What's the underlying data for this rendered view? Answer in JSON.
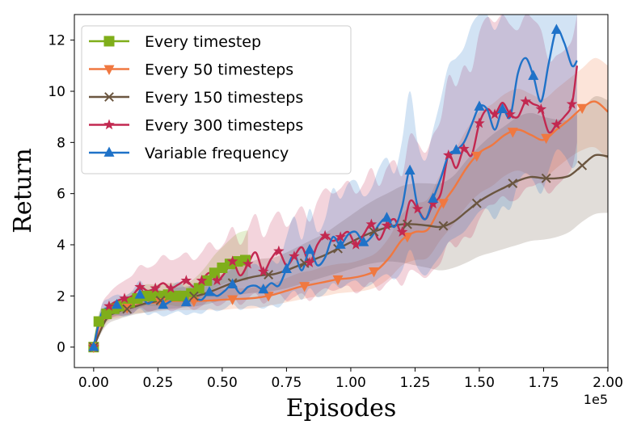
{
  "chart_data": {
    "type": "line",
    "title": "",
    "xlabel": "Episodes",
    "ylabel": "Return",
    "x_offset_label": "1e5",
    "xlim": [
      -0.075,
      2.0
    ],
    "ylim": [
      -0.8,
      13.0
    ],
    "xticks": [
      0.0,
      0.25,
      0.5,
      0.75,
      1.0,
      1.25,
      1.5,
      1.75,
      2.0
    ],
    "xtick_labels": [
      "0.00",
      "0.25",
      "0.50",
      "0.75",
      "1.00",
      "1.25",
      "1.50",
      "1.75",
      "2.00"
    ],
    "yticks": [
      0,
      2,
      4,
      6,
      8,
      10,
      12
    ],
    "ytick_labels": [
      "0",
      "2",
      "4",
      "6",
      "8",
      "10",
      "12"
    ],
    "grid": false,
    "legend_position": "top-left",
    "series": [
      {
        "name": "Every timestep",
        "color": "#7fae1a",
        "marker": "square",
        "x": [
          0,
          0.02,
          0.05,
          0.08,
          0.11,
          0.14,
          0.17,
          0.2,
          0.23,
          0.26,
          0.29,
          0.32,
          0.35,
          0.38,
          0.41,
          0.44,
          0.47,
          0.5,
          0.53,
          0.56,
          0.59,
          0.6
        ],
        "y": [
          0,
          1.0,
          1.3,
          1.5,
          1.6,
          1.75,
          1.9,
          2.0,
          2.0,
          2.0,
          2.05,
          2.0,
          2.0,
          2.1,
          2.3,
          2.6,
          2.9,
          3.1,
          3.25,
          3.35,
          3.4,
          3.4
        ],
        "lower": [
          0,
          0.7,
          1.0,
          1.2,
          1.3,
          1.4,
          1.5,
          1.6,
          1.6,
          1.6,
          1.65,
          1.6,
          1.6,
          1.7,
          1.85,
          2.1,
          2.3,
          2.45,
          2.55,
          2.6,
          2.6,
          2.6
        ],
        "upper": [
          0,
          1.3,
          1.6,
          1.8,
          1.95,
          2.1,
          2.3,
          2.45,
          2.45,
          2.45,
          2.5,
          2.5,
          2.5,
          2.6,
          2.85,
          3.2,
          3.6,
          3.9,
          4.2,
          4.45,
          4.55,
          4.55
        ],
        "marker_x": [
          0,
          0.02,
          0.05,
          0.08,
          0.11,
          0.14,
          0.17,
          0.2,
          0.23,
          0.26,
          0.29,
          0.32,
          0.35,
          0.38,
          0.41,
          0.44,
          0.47,
          0.5,
          0.53,
          0.56,
          0.59
        ]
      },
      {
        "name": "Every 50 timesteps",
        "color": "#f07840",
        "marker": "triangle-down",
        "x": [
          0,
          0.05,
          0.1,
          0.15,
          0.2,
          0.25,
          0.3,
          0.35,
          0.4,
          0.45,
          0.5,
          0.55,
          0.6,
          0.65,
          0.7,
          0.75,
          0.8,
          0.85,
          0.9,
          0.95,
          1.0,
          1.05,
          1.1,
          1.15,
          1.2,
          1.25,
          1.3,
          1.35,
          1.4,
          1.45,
          1.5,
          1.55,
          1.6,
          1.65,
          1.7,
          1.75,
          1.8,
          1.85,
          1.9,
          1.95,
          2.0
        ],
        "y": [
          0,
          1.2,
          1.45,
          1.6,
          1.7,
          1.75,
          1.8,
          1.8,
          1.8,
          1.82,
          1.85,
          1.88,
          1.9,
          1.95,
          2.05,
          2.2,
          2.35,
          2.45,
          2.55,
          2.65,
          2.7,
          2.8,
          3.0,
          3.5,
          4.2,
          4.5,
          4.6,
          5.5,
          6.2,
          7.0,
          7.6,
          7.9,
          8.3,
          8.5,
          8.3,
          8.1,
          8.5,
          8.9,
          9.35,
          9.6,
          9.2
        ],
        "lower": [
          0,
          0.95,
          1.15,
          1.3,
          1.35,
          1.4,
          1.45,
          1.45,
          1.45,
          1.45,
          1.45,
          1.5,
          1.5,
          1.55,
          1.65,
          1.75,
          1.85,
          1.95,
          2.0,
          2.1,
          2.15,
          2.2,
          2.35,
          2.7,
          3.2,
          3.4,
          3.5,
          4.2,
          4.8,
          5.5,
          6.0,
          6.3,
          6.7,
          6.9,
          6.7,
          6.6,
          7.0,
          7.4,
          7.7,
          7.8,
          7.3
        ],
        "upper": [
          0,
          1.45,
          1.75,
          1.9,
          2.05,
          2.1,
          2.15,
          2.15,
          2.15,
          2.2,
          2.25,
          2.3,
          2.3,
          2.4,
          2.5,
          2.7,
          2.9,
          3.0,
          3.15,
          3.25,
          3.3,
          3.45,
          3.7,
          4.3,
          5.2,
          5.6,
          5.8,
          6.8,
          7.6,
          8.5,
          9.2,
          9.5,
          9.9,
          10.1,
          9.9,
          9.7,
          10.1,
          10.5,
          10.9,
          11.3,
          11.0
        ],
        "marker_x": [
          0.0,
          0.13,
          0.26,
          0.39,
          0.54,
          0.68,
          0.82,
          0.95,
          1.09,
          1.22,
          1.36,
          1.49,
          1.63,
          1.76,
          1.9
        ]
      },
      {
        "name": "Every 150 timesteps",
        "color": "#6b5640",
        "marker": "x",
        "x": [
          0,
          0.05,
          0.1,
          0.15,
          0.2,
          0.25,
          0.3,
          0.35,
          0.4,
          0.45,
          0.5,
          0.55,
          0.6,
          0.65,
          0.7,
          0.75,
          0.8,
          0.85,
          0.9,
          0.95,
          1.0,
          1.05,
          1.1,
          1.15,
          1.2,
          1.25,
          1.3,
          1.35,
          1.4,
          1.45,
          1.5,
          1.55,
          1.6,
          1.65,
          1.7,
          1.75,
          1.8,
          1.85,
          1.9,
          1.95,
          2.0
        ],
        "y": [
          0,
          1.1,
          1.4,
          1.55,
          1.7,
          1.8,
          1.9,
          1.95,
          2.0,
          2.15,
          2.35,
          2.55,
          2.7,
          2.8,
          2.85,
          3.0,
          3.2,
          3.4,
          3.6,
          3.85,
          4.1,
          4.35,
          4.55,
          4.7,
          4.8,
          4.8,
          4.75,
          4.7,
          4.9,
          5.3,
          5.7,
          6.0,
          6.25,
          6.5,
          6.65,
          6.6,
          6.6,
          6.7,
          7.1,
          7.5,
          7.45
        ],
        "lower": [
          0,
          0.85,
          1.1,
          1.25,
          1.35,
          1.45,
          1.5,
          1.55,
          1.6,
          1.7,
          1.85,
          2.0,
          2.1,
          2.15,
          2.2,
          2.3,
          2.45,
          2.6,
          2.75,
          2.9,
          3.05,
          3.2,
          3.3,
          3.35,
          3.3,
          3.2,
          3.1,
          3.0,
          3.1,
          3.3,
          3.55,
          3.7,
          3.85,
          4.0,
          4.15,
          4.2,
          4.3,
          4.5,
          4.9,
          5.2,
          5.25
        ],
        "upper": [
          0,
          1.35,
          1.7,
          1.85,
          2.05,
          2.15,
          2.3,
          2.35,
          2.45,
          2.6,
          2.85,
          3.1,
          3.3,
          3.45,
          3.5,
          3.7,
          3.95,
          4.2,
          4.45,
          4.8,
          5.15,
          5.5,
          5.8,
          6.05,
          6.3,
          6.4,
          6.4,
          6.4,
          6.7,
          7.3,
          7.85,
          8.3,
          8.65,
          9.0,
          9.15,
          9.0,
          8.9,
          8.9,
          9.3,
          9.8,
          9.65
        ],
        "marker_x": [
          0.0,
          0.13,
          0.26,
          0.39,
          0.54,
          0.68,
          0.82,
          0.95,
          1.09,
          1.22,
          1.36,
          1.49,
          1.63,
          1.76,
          1.9
        ]
      },
      {
        "name": "Every 300 timesteps",
        "color": "#c22850",
        "marker": "star",
        "x": [
          0,
          0.03,
          0.06,
          0.09,
          0.12,
          0.15,
          0.18,
          0.21,
          0.24,
          0.27,
          0.3,
          0.33,
          0.36,
          0.39,
          0.42,
          0.45,
          0.48,
          0.51,
          0.54,
          0.57,
          0.6,
          0.63,
          0.66,
          0.69,
          0.72,
          0.75,
          0.78,
          0.81,
          0.84,
          0.87,
          0.9,
          0.93,
          0.96,
          0.99,
          1.02,
          1.05,
          1.08,
          1.11,
          1.14,
          1.17,
          1.2,
          1.23,
          1.26,
          1.29,
          1.32,
          1.35,
          1.38,
          1.41,
          1.44,
          1.47,
          1.5,
          1.53,
          1.56,
          1.59,
          1.62,
          1.65,
          1.68,
          1.71,
          1.74,
          1.77,
          1.8,
          1.83,
          1.86,
          1.88
        ],
        "y": [
          0,
          1.2,
          1.6,
          1.8,
          1.9,
          2.0,
          2.35,
          2.2,
          2.3,
          2.5,
          2.3,
          2.45,
          2.6,
          2.35,
          2.6,
          2.9,
          2.6,
          2.9,
          3.35,
          2.8,
          3.25,
          3.7,
          2.95,
          3.45,
          3.75,
          3.2,
          3.55,
          3.9,
          3.3,
          4.0,
          4.35,
          4.15,
          4.3,
          4.5,
          4.0,
          4.4,
          4.8,
          4.2,
          4.75,
          5.0,
          4.5,
          5.7,
          5.4,
          5.0,
          5.6,
          6.0,
          7.5,
          7.0,
          7.75,
          7.5,
          8.75,
          9.3,
          9.1,
          9.55,
          9.1,
          9.0,
          9.6,
          9.5,
          9.3,
          8.4,
          8.7,
          9.0,
          9.5,
          11.0
        ],
        "lower": [
          0,
          0.8,
          1.1,
          1.2,
          1.25,
          1.3,
          1.55,
          1.4,
          1.45,
          1.6,
          1.4,
          1.5,
          1.6,
          1.45,
          1.6,
          1.8,
          1.6,
          1.75,
          2.0,
          1.65,
          1.9,
          2.1,
          1.7,
          1.95,
          2.1,
          1.8,
          1.95,
          2.1,
          1.8,
          2.1,
          2.3,
          2.2,
          2.3,
          2.4,
          2.1,
          2.3,
          2.55,
          2.2,
          2.5,
          2.7,
          2.4,
          3.0,
          2.9,
          2.7,
          3.0,
          3.3,
          4.1,
          3.9,
          4.3,
          4.3,
          5.0,
          5.5,
          5.6,
          5.9,
          5.7,
          5.8,
          6.2,
          6.3,
          6.4,
          6.0,
          6.3,
          6.6,
          7.0,
          8.0
        ],
        "upper": [
          0,
          1.6,
          2.1,
          2.4,
          2.6,
          2.8,
          3.2,
          3.1,
          3.25,
          3.6,
          3.4,
          3.5,
          3.7,
          3.4,
          3.7,
          4.1,
          3.8,
          4.1,
          4.7,
          4.0,
          4.6,
          5.2,
          4.3,
          4.9,
          5.3,
          4.7,
          5.1,
          5.5,
          4.9,
          5.7,
          6.2,
          6.0,
          6.2,
          6.5,
          6.0,
          6.4,
          7.0,
          6.3,
          7.0,
          7.3,
          6.7,
          8.3,
          8.0,
          7.6,
          8.3,
          8.9,
          10.6,
          10.2,
          11.0,
          10.8,
          12.3,
          12.9,
          12.7,
          13.0,
          12.6,
          12.4,
          13.0,
          12.8,
          12.4,
          11.2,
          11.4,
          11.6,
          12.0,
          13.0
        ],
        "marker_x": [
          0,
          0.06,
          0.12,
          0.18,
          0.24,
          0.3,
          0.36,
          0.42,
          0.48,
          0.54,
          0.6,
          0.66,
          0.72,
          0.78,
          0.84,
          0.9,
          0.96,
          1.02,
          1.08,
          1.14,
          1.2,
          1.26,
          1.32,
          1.38,
          1.44,
          1.5,
          1.56,
          1.62,
          1.68,
          1.74,
          1.8,
          1.86
        ]
      },
      {
        "name": "Variable frequency",
        "color": "#1f72c8",
        "marker": "triangle-up",
        "x": [
          0,
          0.03,
          0.06,
          0.09,
          0.12,
          0.15,
          0.18,
          0.21,
          0.24,
          0.27,
          0.3,
          0.33,
          0.36,
          0.39,
          0.42,
          0.45,
          0.48,
          0.51,
          0.54,
          0.57,
          0.6,
          0.63,
          0.66,
          0.69,
          0.72,
          0.75,
          0.78,
          0.81,
          0.84,
          0.87,
          0.9,
          0.93,
          0.96,
          0.99,
          1.02,
          1.05,
          1.08,
          1.11,
          1.14,
          1.17,
          1.2,
          1.23,
          1.26,
          1.29,
          1.32,
          1.35,
          1.38,
          1.41,
          1.44,
          1.47,
          1.5,
          1.53,
          1.56,
          1.59,
          1.62,
          1.65,
          1.68,
          1.71,
          1.74,
          1.77,
          1.8,
          1.83,
          1.86,
          1.88
        ],
        "y": [
          0,
          1.3,
          1.55,
          1.65,
          1.6,
          1.75,
          2.05,
          1.7,
          1.85,
          1.65,
          1.8,
          1.95,
          1.75,
          1.9,
          1.85,
          2.15,
          2.0,
          2.2,
          2.45,
          2.1,
          2.35,
          2.4,
          2.25,
          2.5,
          2.4,
          3.05,
          3.6,
          3.0,
          3.8,
          3.2,
          3.5,
          4.3,
          4.0,
          4.4,
          4.5,
          4.1,
          4.3,
          4.8,
          5.05,
          4.7,
          5.5,
          6.9,
          5.5,
          5.0,
          5.8,
          6.6,
          7.5,
          7.7,
          8.0,
          8.7,
          9.4,
          9.3,
          8.5,
          9.3,
          9.0,
          10.7,
          11.3,
          10.6,
          9.6,
          11.1,
          12.4,
          11.9,
          11.0,
          11.2
        ],
        "lower": [
          0,
          1.0,
          1.2,
          1.25,
          1.2,
          1.3,
          1.5,
          1.25,
          1.35,
          1.2,
          1.3,
          1.4,
          1.25,
          1.35,
          1.3,
          1.5,
          1.4,
          1.5,
          1.7,
          1.45,
          1.6,
          1.6,
          1.5,
          1.65,
          1.55,
          1.9,
          2.2,
          1.85,
          2.3,
          1.95,
          2.1,
          2.5,
          2.3,
          2.5,
          2.6,
          2.35,
          2.45,
          2.7,
          2.85,
          2.65,
          3.0,
          3.8,
          3.1,
          2.8,
          3.2,
          3.6,
          4.1,
          4.3,
          4.5,
          4.9,
          5.3,
          5.4,
          5.0,
          5.5,
          5.4,
          6.4,
          6.8,
          6.5,
          6.0,
          6.9,
          7.7,
          7.5,
          7.0,
          7.2
        ],
        "upper": [
          0,
          1.6,
          1.9,
          2.05,
          2.0,
          2.2,
          2.6,
          2.2,
          2.4,
          2.15,
          2.35,
          2.55,
          2.3,
          2.5,
          2.45,
          2.85,
          2.65,
          2.95,
          3.3,
          2.8,
          3.15,
          3.25,
          3.05,
          3.4,
          3.3,
          4.3,
          5.1,
          4.2,
          5.4,
          4.5,
          5.0,
          6.2,
          5.8,
          6.4,
          6.5,
          5.9,
          6.2,
          7.0,
          7.4,
          6.8,
          8.1,
          10.0,
          8.0,
          7.3,
          8.5,
          9.7,
          11.0,
          11.3,
          11.7,
          12.6,
          13.0,
          13.0,
          12.4,
          13.0,
          13.0,
          13.0,
          13.0,
          13.0,
          13.0,
          13.0,
          13.0,
          13.0,
          13.0,
          13.0
        ],
        "marker_x": [
          0,
          0.09,
          0.18,
          0.27,
          0.36,
          0.45,
          0.54,
          0.66,
          0.75,
          0.84,
          0.96,
          1.05,
          1.14,
          1.23,
          1.32,
          1.41,
          1.5,
          1.59,
          1.71,
          1.8
        ]
      }
    ]
  }
}
